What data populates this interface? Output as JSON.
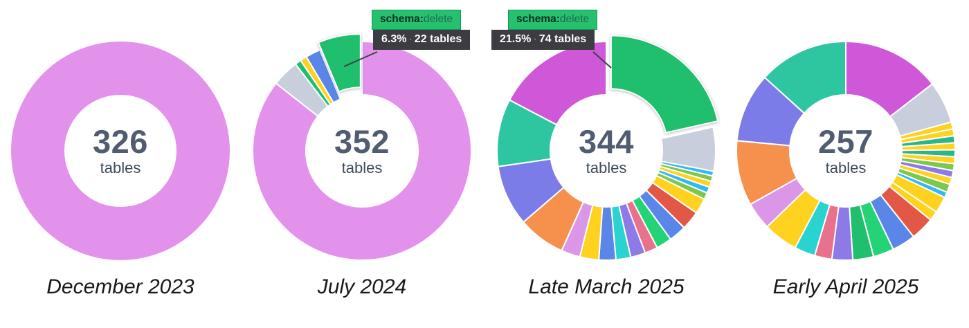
{
  "page": {
    "background": "#ffffff"
  },
  "palette": {
    "pink": "#e292ea",
    "gray": "#c9cedd",
    "emerald": "#1fbf6e",
    "cornflower": "#5a86e8",
    "gold": "#ffd21f",
    "sky": "#35b8f2",
    "yellowgreen": "#7cc84f",
    "vermilion": "#e25746",
    "rose": "#e8718d",
    "amethyst": "#8d7ae6",
    "turquoise": "#29d3cf",
    "periwinkle": "#7b7ce8",
    "seafoam": "#2ec5a1",
    "orchid": "#ce58d8",
    "plum": "#dc96e8",
    "orange": "#f5914d",
    "teal": "#2bb58b",
    "spring": "#25d377"
  },
  "text_colors": {
    "center_value": "#505d71",
    "center_unit": "#3e4a5a",
    "caption": "#17191c"
  },
  "tooltips": [
    {
      "schema_key": "schema",
      "colon": ":",
      "schema_value": "delete",
      "percent": "6.3%",
      "dot": "·",
      "count": "22 tables"
    },
    {
      "schema_key": "schema",
      "colon": ":",
      "schema_value": "delete",
      "percent": "21.5%",
      "dot": "·",
      "count": "74 tables"
    }
  ],
  "chart_data": [
    {
      "type": "pie",
      "donut": true,
      "title": "December 2023",
      "center_value": "326",
      "center_label": "tables",
      "slices": [
        {
          "name": "pink",
          "pct": 100
        }
      ]
    },
    {
      "type": "pie",
      "donut": true,
      "title": "July 2024",
      "center_value": "352",
      "center_label": "tables",
      "highlight": {
        "schema": "delete",
        "percent": "6.3%",
        "tables": 22
      },
      "slices": [
        {
          "name": "pink",
          "pct": 85.6
        },
        {
          "name": "gray",
          "pct": 4.0
        },
        {
          "name": "emerald",
          "pct": 0.9
        },
        {
          "name": "gold",
          "pct": 1.0
        },
        {
          "name": "cornflower",
          "pct": 2.2
        },
        {
          "name": "emerald",
          "pct": 6.3,
          "exploded": true,
          "label": "schema:delete"
        }
      ]
    },
    {
      "type": "pie",
      "donut": true,
      "title": "Late March 2025",
      "center_value": "344",
      "center_label": "tables",
      "highlight": {
        "schema": "delete",
        "percent": "21.5%",
        "tables": 74
      },
      "slices": [
        {
          "name": "emerald",
          "pct": 21.5,
          "exploded": true,
          "label": "schema:delete"
        },
        {
          "name": "gray",
          "pct": 6.5
        },
        {
          "name": "sky",
          "pct": 0.7
        },
        {
          "name": "yellowgreen",
          "pct": 0.8
        },
        {
          "name": "gold",
          "pct": 0.9
        },
        {
          "name": "sky",
          "pct": 0.9
        },
        {
          "name": "yellowgreen",
          "pct": 1.0
        },
        {
          "name": "gold",
          "pct": 2.3
        },
        {
          "name": "vermilion",
          "pct": 2.8
        },
        {
          "name": "cornflower",
          "pct": 2.6
        },
        {
          "name": "spring",
          "pct": 2.3
        },
        {
          "name": "rose",
          "pct": 1.9
        },
        {
          "name": "amethyst",
          "pct": 2.2
        },
        {
          "name": "turquoise",
          "pct": 2.2
        },
        {
          "name": "cornflower",
          "pct": 2.5
        },
        {
          "name": "gold",
          "pct": 2.8
        },
        {
          "name": "plum",
          "pct": 2.8
        },
        {
          "name": "orange",
          "pct": 7.0
        },
        {
          "name": "periwinkle",
          "pct": 9.0
        },
        {
          "name": "seafoam",
          "pct": 10.0
        },
        {
          "name": "orchid",
          "pct": 17.3
        }
      ]
    },
    {
      "type": "pie",
      "donut": true,
      "title": "Early April 2025",
      "center_value": "257",
      "center_label": "tables",
      "slices": [
        {
          "name": "orchid",
          "pct": 14.2
        },
        {
          "name": "gray",
          "pct": 6.1
        },
        {
          "name": "gold",
          "pct": 1.0
        },
        {
          "name": "gold",
          "pct": 1.0
        },
        {
          "name": "teal",
          "pct": 1.0
        },
        {
          "name": "gold",
          "pct": 1.0
        },
        {
          "name": "teal",
          "pct": 1.0
        },
        {
          "name": "gold",
          "pct": 1.0
        },
        {
          "name": "yellowgreen",
          "pct": 1.0
        },
        {
          "name": "amethyst",
          "pct": 1.0
        },
        {
          "name": "gold",
          "pct": 1.0
        },
        {
          "name": "yellowgreen",
          "pct": 1.2
        },
        {
          "name": "sky",
          "pct": 0.8
        },
        {
          "name": "gold",
          "pct": 2.4
        },
        {
          "name": "gold",
          "pct": 1.4
        },
        {
          "name": "vermilion",
          "pct": 3.4
        },
        {
          "name": "cornflower",
          "pct": 3.4
        },
        {
          "name": "spring",
          "pct": 3.0
        },
        {
          "name": "emerald",
          "pct": 3.0
        },
        {
          "name": "amethyst",
          "pct": 3.0
        },
        {
          "name": "rose",
          "pct": 2.5
        },
        {
          "name": "turquoise",
          "pct": 3.0
        },
        {
          "name": "gold",
          "pct": 5.0
        },
        {
          "name": "plum",
          "pct": 4.0
        },
        {
          "name": "orange",
          "pct": 9.4
        },
        {
          "name": "periwinkle",
          "pct": 10.0
        },
        {
          "name": "seafoam",
          "pct": 13.0
        }
      ]
    }
  ]
}
